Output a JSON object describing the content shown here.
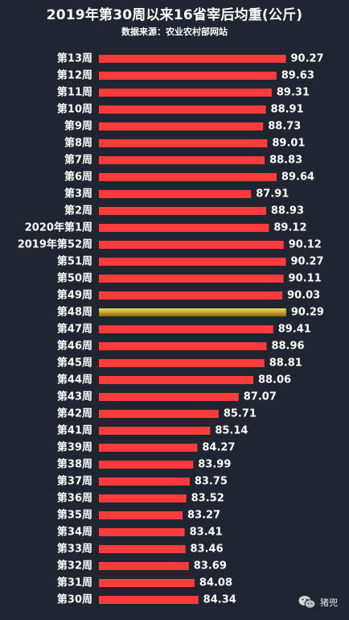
{
  "chart_data": {
    "type": "bar",
    "orientation": "horizontal",
    "title": "2019年第30周以来16省宰后均重(公斤)",
    "subtitle": "数据来源：农业农村部网站",
    "categories": [
      "第13周",
      "第12周",
      "第11周",
      "第10周",
      "第9周",
      "第8周",
      "第7周",
      "第6周",
      "第3周",
      "第2周",
      "2020年第1周",
      "2019年第52周",
      "第51周",
      "第50周",
      "第49周",
      "第48周",
      "第47周",
      "第46周",
      "第45周",
      "第44周",
      "第43周",
      "第42周",
      "第41周",
      "第39周",
      "第38周",
      "第37周",
      "第36周",
      "第35周",
      "第34周",
      "第33周",
      "第32周",
      "第31周",
      "第30周"
    ],
    "values": [
      90.27,
      89.63,
      89.31,
      88.91,
      88.73,
      89.01,
      88.83,
      89.64,
      87.91,
      88.93,
      89.12,
      90.12,
      90.27,
      90.11,
      90.03,
      90.29,
      89.41,
      88.96,
      88.81,
      88.06,
      87.07,
      85.71,
      85.14,
      84.27,
      83.99,
      83.75,
      83.52,
      83.27,
      83.41,
      83.46,
      83.69,
      84.08,
      84.34
    ],
    "labels": [
      "90.27",
      "89.63",
      "89.31",
      "88.91",
      "88.73",
      "89.01",
      "88.83",
      "89.64",
      "87.91",
      "88.93",
      "89.12",
      "90.12",
      "90.27",
      "90.11",
      "90.03",
      "90.29",
      "89.41",
      "88.96",
      "88.81",
      "88.06",
      "87.07",
      "85.71",
      "85.14",
      "84.27",
      "83.99",
      "83.75",
      "83.52",
      "83.27",
      "83.41",
      "83.46",
      "83.69",
      "84.08",
      "84.34"
    ],
    "highlight_category": "第48周",
    "colors": {
      "bar": "#ff3b3b",
      "highlight": "#d4af37",
      "background": "#1f2632",
      "text": "#ffffff"
    },
    "grid": false,
    "legend": "none"
  },
  "watermark": {
    "text": "猪兜",
    "icon": "wechat-icon"
  }
}
